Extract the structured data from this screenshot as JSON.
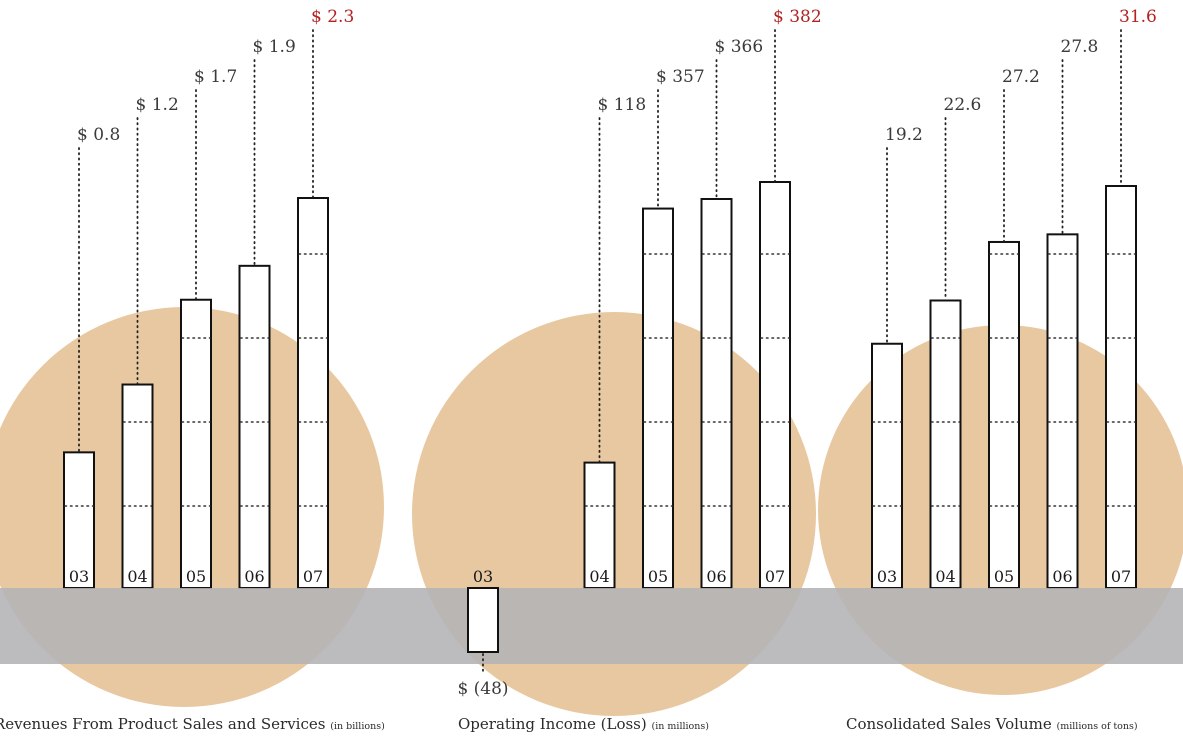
{
  "colors": {
    "circle": "#e8c8a0",
    "band": "#b3b3b6",
    "bar_fill": "#ffffff",
    "bar_stroke": "#111111",
    "label": "#3a3a3a",
    "highlight": "#b22222"
  },
  "chart_data": [
    {
      "type": "bar",
      "title": "Revenues From Product Sales and Services",
      "unit_note": "(in billions)",
      "categories": [
        "03",
        "04",
        "05",
        "06",
        "07"
      ],
      "values": [
        0.8,
        1.2,
        1.7,
        1.9,
        2.3
      ],
      "value_labels": [
        "$ 0.8",
        "$ 1.2",
        "$ 1.7",
        "$ 1.9",
        "$ 2.3"
      ],
      "highlight_index": 4,
      "ylim": [
        0,
        2.3
      ]
    },
    {
      "type": "bar",
      "title": "Operating Income (Loss)",
      "unit_note": "(in millions)",
      "categories": [
        "03",
        "04",
        "05",
        "06",
        "07"
      ],
      "values": [
        -48,
        118,
        357,
        366,
        382
      ],
      "value_labels": [
        "$ (48)",
        "$ 118",
        "$ 357",
        "$ 366",
        "$ 382"
      ],
      "highlight_index": 4,
      "ylim": [
        -48,
        382
      ]
    },
    {
      "type": "bar",
      "title": "Consolidated Sales Volume",
      "unit_note": "(millions of tons)",
      "categories": [
        "03",
        "04",
        "05",
        "06",
        "07"
      ],
      "values": [
        19.2,
        22.6,
        27.2,
        27.8,
        31.6
      ],
      "value_labels": [
        "19.2",
        "22.6",
        "27.2",
        "27.8",
        "31.6"
      ],
      "highlight_index": 4,
      "ylim": [
        0,
        31.6
      ]
    }
  ]
}
